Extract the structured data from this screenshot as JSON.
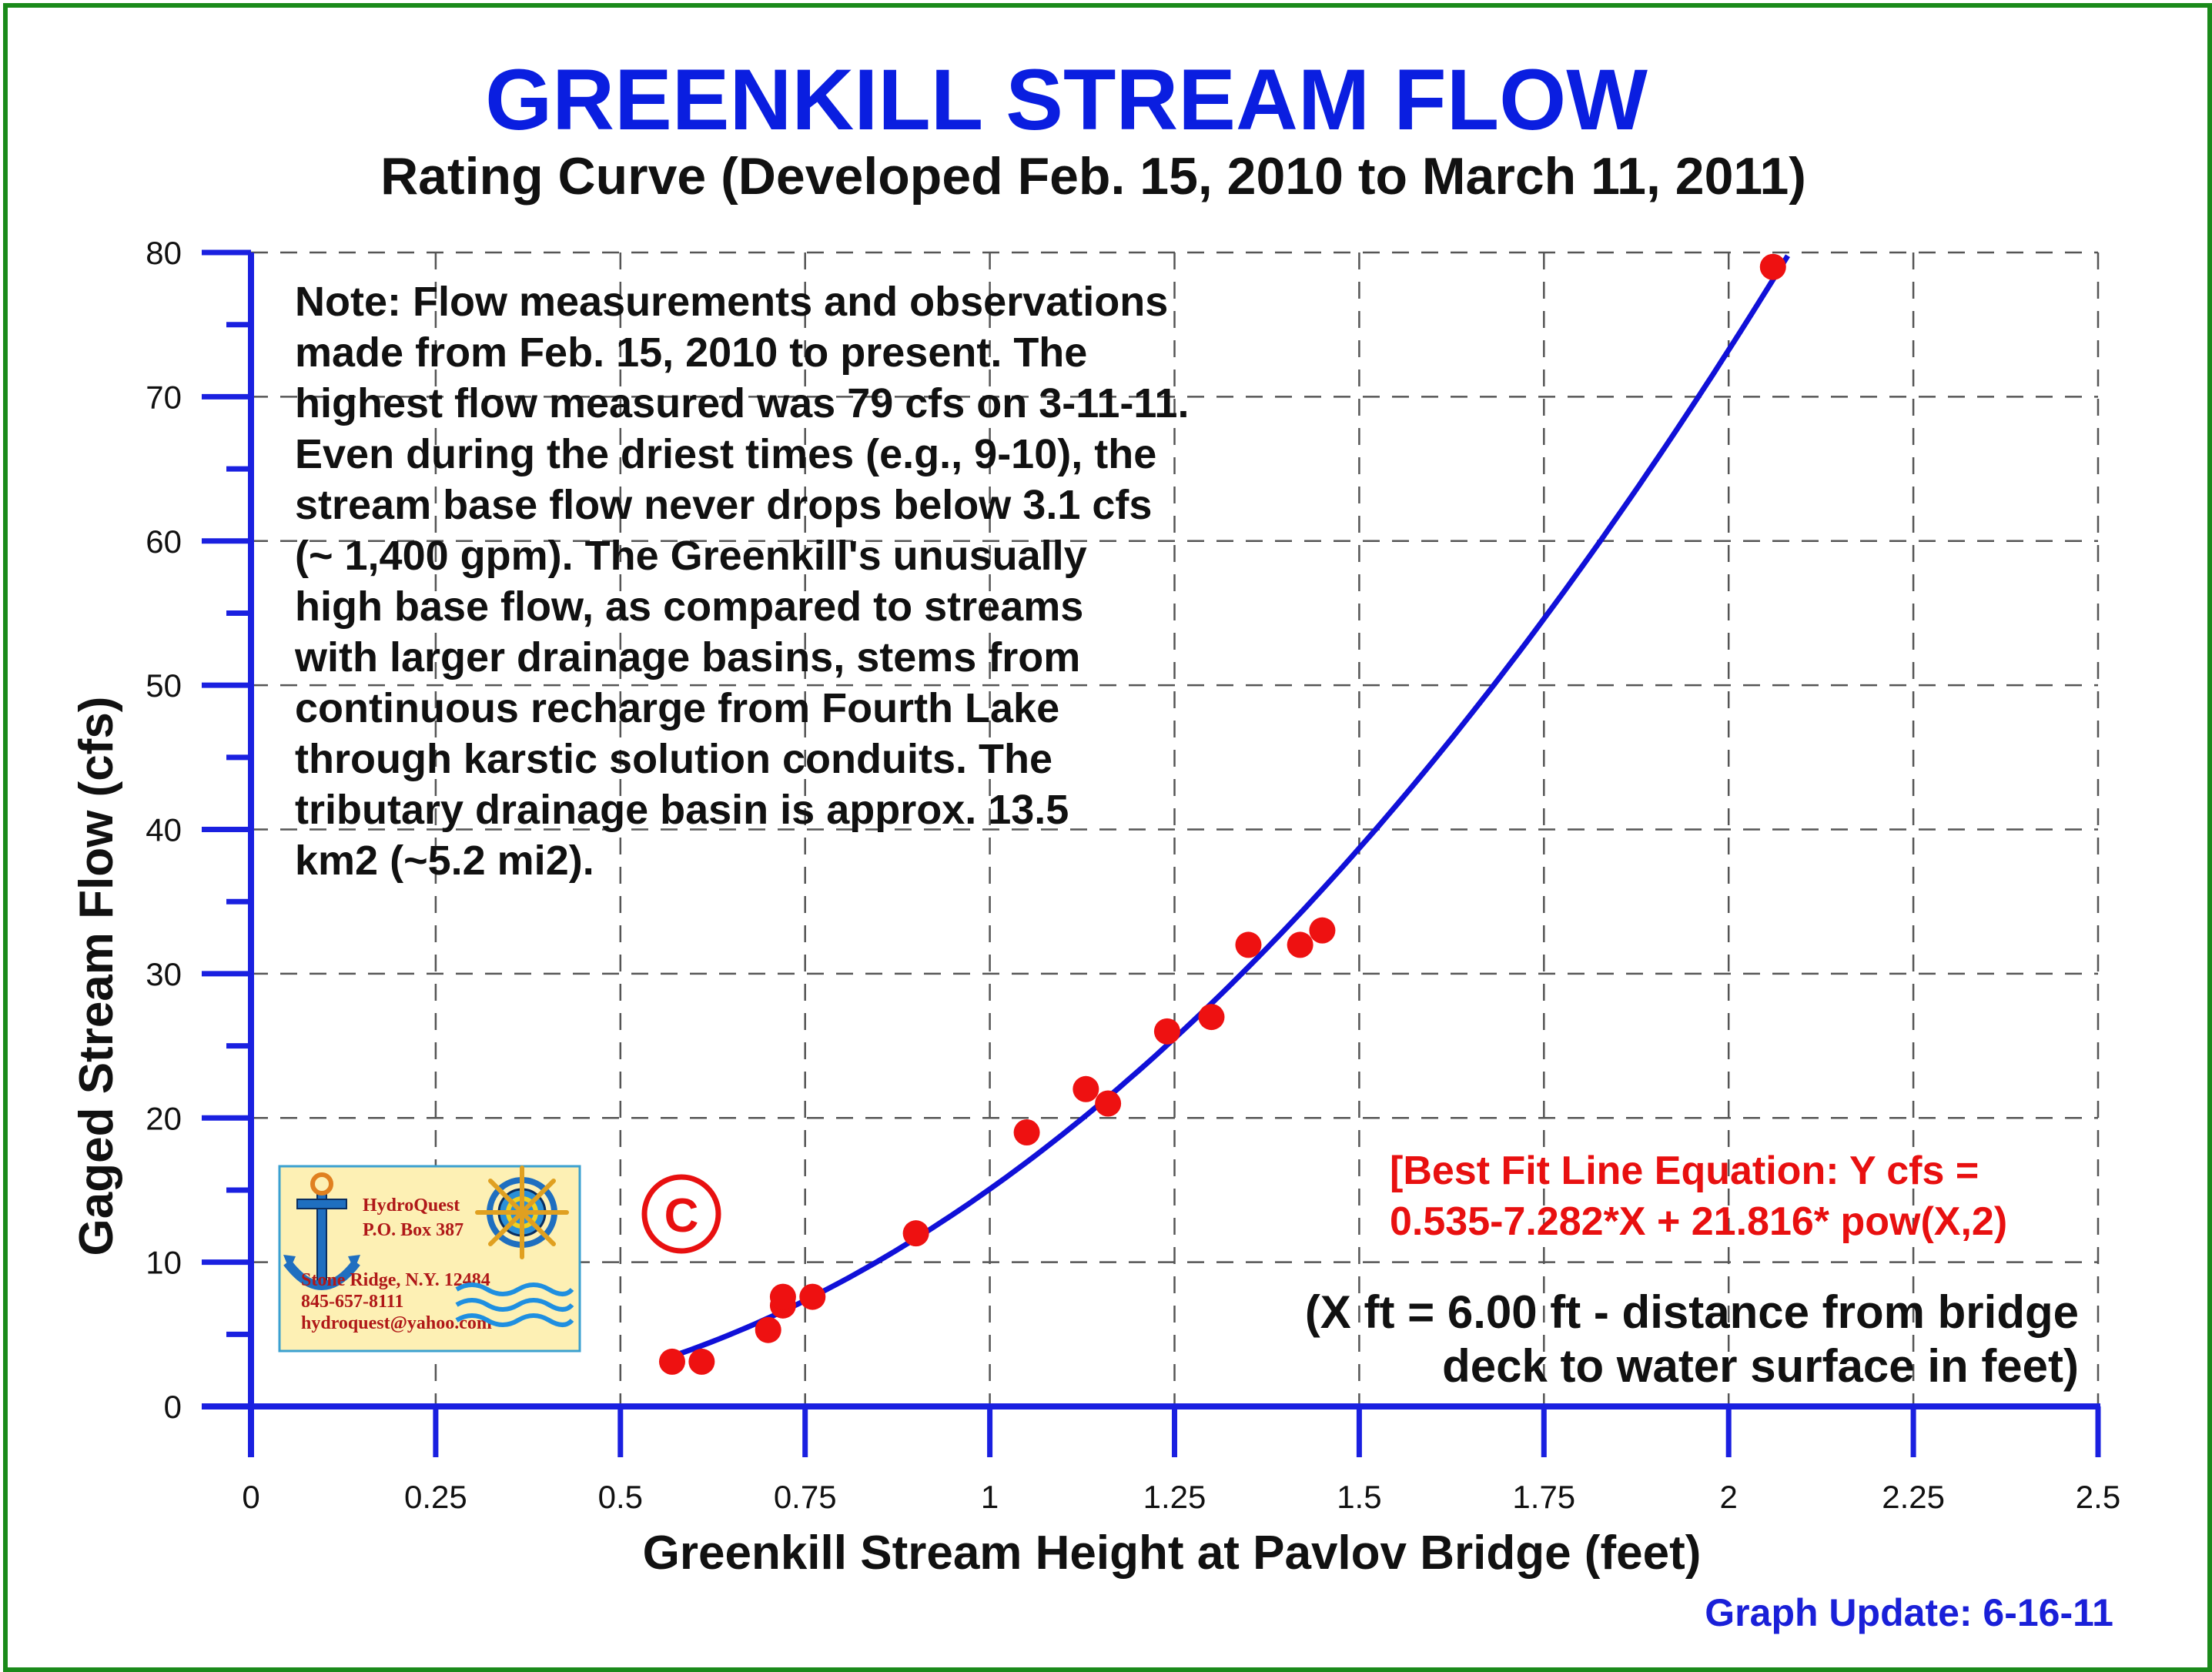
{
  "title": "GREENKILL STREAM FLOW",
  "subtitle": "Rating Curve (Developed Feb. 15, 2010 to March 11, 2011)",
  "note_lines": [
    "Note: Flow measurements and observations",
    "made from Feb. 15, 2010 to present.  The",
    "highest flow measured was 79 cfs on 3-11-11.",
    "Even during the driest times (e.g., 9-10), the",
    "stream base flow never drops below 3.1 cfs",
    "(~ 1,400 gpm).  The Greenkill's unusually",
    "high base flow, as compared to streams",
    "with larger drainage basins, stems from",
    "continuous recharge from Fourth Lake",
    "through karstic solution conduits.  The",
    "tributary drainage basin is approx. 13.5",
    "km2 (~5.2 mi2)."
  ],
  "equation_lines": [
    "[Best Fit Line Equation: Y cfs =",
    "0.535-7.282*X + 21.816* pow(X,2)"
  ],
  "x_note_lines": [
    "(X ft = 6.00 ft - distance from bridge",
    "deck to water surface in feet)"
  ],
  "update": "Graph Update: 6-16-11",
  "copyright_symbol": "C",
  "logo": {
    "name": "HydroQuest",
    "box": "P.O. Box 387",
    "city": "Stone Ridge, N.Y. 12484",
    "phone": "845-657-8111",
    "email": "hydroquest@yahoo.com"
  },
  "colors": {
    "axis": "#1a20e0",
    "curve": "#1010d8",
    "points": "#ee1111",
    "frame": "#1a8a1a",
    "grid": "#555555"
  },
  "chart_data": {
    "type": "scatter",
    "title": "GREENKILL STREAM FLOW",
    "subtitle": "Rating Curve (Developed Feb. 15, 2010 to March 11, 2011)",
    "xlabel": "Greenkill Stream Height at Pavlov Bridge (feet)",
    "ylabel": "Gaged Stream Flow (cfs)",
    "xlim": [
      0,
      2.5
    ],
    "ylim": [
      0,
      80
    ],
    "x_ticks": [
      0,
      0.25,
      0.5,
      0.75,
      1,
      1.25,
      1.5,
      1.75,
      2,
      2.25,
      2.5
    ],
    "x_tick_labels": [
      "0",
      "0.25",
      "0.5",
      "0.75",
      "1",
      "1.25",
      "1.5",
      "1.75",
      "2",
      "2.25",
      "2.5"
    ],
    "y_ticks": [
      0,
      10,
      20,
      30,
      40,
      50,
      60,
      70,
      80
    ],
    "y_tick_labels": [
      "0",
      "10",
      "20",
      "30",
      "40",
      "50",
      "60",
      "70",
      "80"
    ],
    "grid": true,
    "series": [
      {
        "type": "scatter",
        "x": [
          0.57,
          0.61,
          0.7,
          0.72,
          0.72,
          0.76,
          0.9,
          1.05,
          1.13,
          1.16,
          1.24,
          1.3,
          1.35,
          1.42,
          1.45,
          2.06
        ],
        "y": [
          3.1,
          3.1,
          5.3,
          7.0,
          7.6,
          7.6,
          12,
          19,
          22,
          21,
          26,
          27,
          32,
          32,
          33,
          79
        ]
      },
      {
        "type": "line",
        "fit": "quadratic",
        "coefficients": [
          0.535,
          -7.282,
          21.816
        ],
        "x_range": [
          0.57,
          2.08
        ]
      }
    ]
  }
}
